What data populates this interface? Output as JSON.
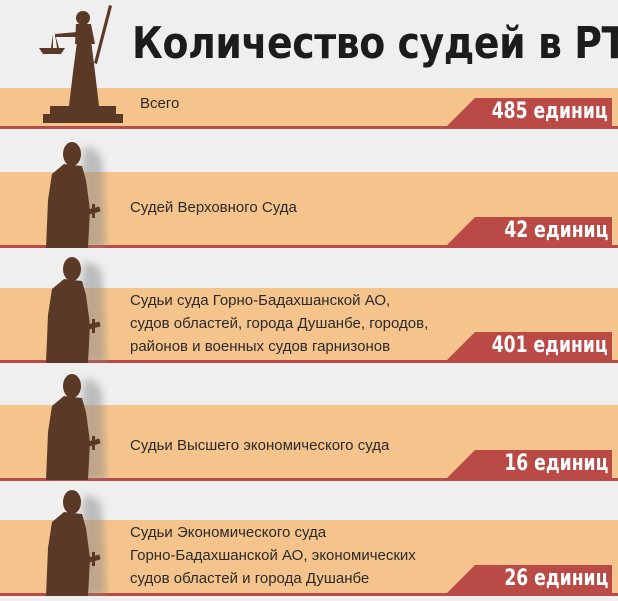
{
  "title": "Количество судей в РТ",
  "colors": {
    "band": "#f5c48c",
    "accent": "#b94a45",
    "silhouette": "#5a3a26",
    "background": "#efefef"
  },
  "rows": [
    {
      "label": [
        "Всего"
      ],
      "value": "485 единиц",
      "icon": "themis-statue-icon"
    },
    {
      "label": [
        "Судей Верховного Суда"
      ],
      "value": "42 единиц",
      "icon": "judge-silhouette-icon"
    },
    {
      "label": [
        "Судьи суда Горно-Бадахшанской АО,",
        "судов областей, города Душанбе, городов,",
        "районов и военных судов гарнизонов"
      ],
      "value": "401 единиц",
      "icon": "judge-silhouette-icon"
    },
    {
      "label": [
        "Судьи Высшего экономического суда"
      ],
      "value": "16 единиц",
      "icon": "judge-silhouette-icon"
    },
    {
      "label": [
        "Судьи Экономического суда",
        "Горно-Бадахшанской АО, экономических",
        "судов областей и города Душанбе"
      ],
      "value": "26 единиц",
      "icon": "judge-silhouette-icon"
    }
  ]
}
